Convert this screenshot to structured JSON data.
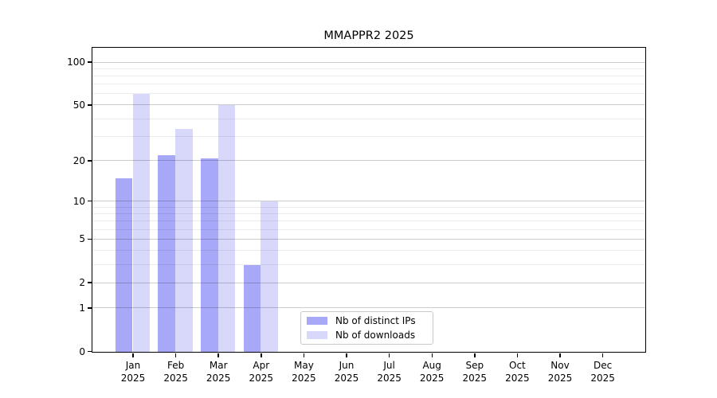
{
  "chart_data": {
    "type": "bar",
    "title": "MMAPPR2 2025",
    "year_label": "2025",
    "months": [
      "Jan",
      "Feb",
      "Mar",
      "Apr",
      "May",
      "Jun",
      "Jul",
      "Aug",
      "Sep",
      "Oct",
      "Nov",
      "Dec"
    ],
    "series": [
      {
        "name": "Nb of distinct IPs",
        "color": "#a8a8f8",
        "values": [
          15,
          22,
          21,
          3,
          null,
          null,
          null,
          null,
          null,
          null,
          null,
          null
        ]
      },
      {
        "name": "Nb of downloads",
        "color": "#d8d8fa",
        "values": [
          60,
          34,
          50,
          10,
          null,
          null,
          null,
          null,
          null,
          null,
          null,
          null
        ]
      }
    ],
    "y_axis": {
      "scale": "log10(1+x)",
      "tick_values": [
        0,
        1,
        2,
        5,
        10,
        20,
        50,
        100
      ],
      "tick_labels": [
        "0",
        "1",
        "2",
        "5",
        "10",
        "20",
        "50",
        "100"
      ],
      "minor_gridlines": [
        3,
        4,
        6,
        7,
        8,
        9,
        30,
        40,
        60,
        70,
        80,
        90
      ],
      "range": [
        0,
        128
      ]
    },
    "grid": "on",
    "legend_position": "bottom-center"
  }
}
